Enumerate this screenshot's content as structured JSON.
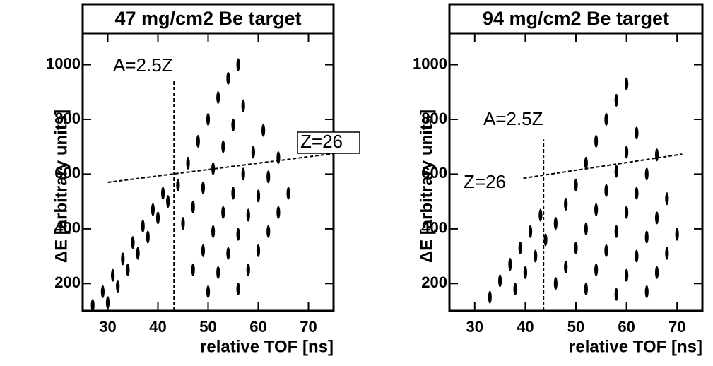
{
  "chart_data": [
    {
      "type": "scatter",
      "title": "47 mg/cm2 Be target",
      "x_label": "relative TOF [ns]",
      "y_label": "ΔE [arbitrary units]",
      "xlim": [
        25,
        75
      ],
      "ylim": [
        100,
        1115
      ],
      "xticks": [
        30,
        40,
        50,
        60,
        70
      ],
      "yticks": [
        200,
        400,
        600,
        800,
        1000
      ],
      "color": "#000000",
      "points": {
        "x": [
          27,
          29,
          31,
          33,
          35,
          37,
          39,
          41,
          30,
          32,
          34,
          36,
          38,
          40,
          42,
          44,
          46,
          48,
          50,
          52,
          54,
          56,
          45,
          47,
          49,
          51,
          53,
          55,
          57,
          47,
          49,
          51,
          53,
          55,
          57,
          59,
          61,
          50,
          52,
          54,
          56,
          58,
          60,
          62,
          64,
          56,
          58,
          60,
          62,
          64,
          66
        ],
        "y": [
          120,
          170,
          230,
          290,
          350,
          410,
          470,
          530,
          130,
          190,
          250,
          310,
          370,
          440,
          500,
          560,
          640,
          720,
          800,
          880,
          950,
          1000,
          420,
          480,
          550,
          620,
          700,
          780,
          850,
          250,
          320,
          390,
          460,
          530,
          600,
          680,
          760,
          170,
          240,
          310,
          380,
          450,
          520,
          590,
          660,
          180,
          250,
          320,
          390,
          460,
          530
        ]
      },
      "guides": [
        {
          "label": "A=2.5Z",
          "x": [
            43.2,
            43.2
          ],
          "y": [
            100,
            940
          ]
        },
        {
          "label": "Z=26",
          "x": [
            30,
            75
          ],
          "y": [
            570,
            675
          ]
        }
      ]
    },
    {
      "type": "scatter",
      "title": "94 mg/cm2 Be target",
      "x_label": "relative TOF [ns]",
      "y_label": "ΔE [arbitrary units]",
      "xlim": [
        25,
        75
      ],
      "ylim": [
        100,
        1115
      ],
      "xticks": [
        30,
        40,
        50,
        60,
        70
      ],
      "yticks": [
        200,
        400,
        600,
        800,
        1000
      ],
      "color": "#000000",
      "points": {
        "x": [
          33,
          35,
          37,
          39,
          41,
          43,
          38,
          40,
          42,
          44,
          46,
          48,
          50,
          52,
          54,
          56,
          58,
          60,
          46,
          48,
          50,
          52,
          54,
          56,
          58,
          60,
          62,
          52,
          54,
          56,
          58,
          60,
          62,
          64,
          66,
          58,
          60,
          62,
          64,
          66,
          68,
          64,
          66,
          68,
          70
        ],
        "y": [
          150,
          210,
          270,
          330,
          390,
          450,
          180,
          240,
          300,
          360,
          420,
          490,
          560,
          640,
          720,
          800,
          870,
          930,
          200,
          260,
          330,
          400,
          470,
          540,
          610,
          680,
          750,
          180,
          250,
          320,
          390,
          460,
          530,
          600,
          670,
          160,
          230,
          300,
          370,
          440,
          510,
          170,
          240,
          310,
          380
        ]
      },
      "guides": [
        {
          "label": "A=2.5Z",
          "x": [
            43.6,
            43.6
          ],
          "y": [
            100,
            727
          ]
        },
        {
          "label": "Z=26",
          "x": [
            39.6,
            71
          ],
          "y": [
            585,
            673
          ]
        }
      ]
    }
  ]
}
